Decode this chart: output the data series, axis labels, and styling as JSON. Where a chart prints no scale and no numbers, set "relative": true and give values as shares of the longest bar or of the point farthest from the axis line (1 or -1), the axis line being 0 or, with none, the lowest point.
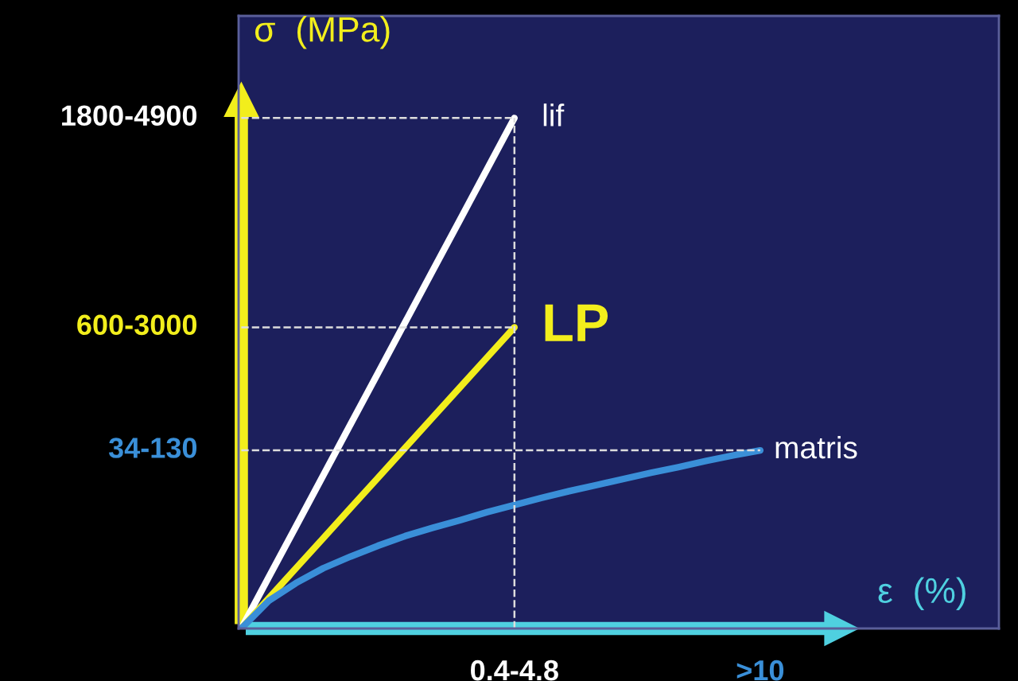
{
  "chart_data": {
    "type": "line",
    "relative": true,
    "ylabel": "σ  (MPa)",
    "xlabel": "ε  (%)",
    "categories": [
      null,
      null,
      null,
      null,
      null,
      null,
      null,
      null,
      null,
      null,
      "0.4-4.8",
      null,
      null,
      null,
      null,
      null,
      null,
      null,
      null,
      ">10"
    ],
    "series": [
      {
        "name": "lif",
        "color": "#ffffff",
        "values": [
          0,
          0.1,
          0.2,
          0.3,
          0.4,
          0.5,
          0.6,
          0.7,
          0.8,
          0.9,
          1,
          null,
          null,
          null,
          null,
          null,
          null,
          null,
          null,
          null
        ]
      },
      {
        "name": "LP",
        "color": "#f2ee1c",
        "values": [
          0,
          0.059,
          0.118,
          0.177,
          0.236,
          0.295,
          0.354,
          0.413,
          0.472,
          0.531,
          0.59,
          null,
          null,
          null,
          null,
          null,
          null,
          null,
          null,
          null
        ]
      },
      {
        "name": "matris",
        "color": "#3a8fd8",
        "values": [
          0,
          0.054,
          0.089,
          0.118,
          0.141,
          0.162,
          0.181,
          0.197,
          0.212,
          0.228,
          0.242,
          0.256,
          0.269,
          0.281,
          0.293,
          0.305,
          0.316,
          0.328,
          0.339,
          0.349
        ]
      }
    ],
    "ref_lines": [
      {
        "axis": "y",
        "value": 1,
        "color": "#dddddd",
        "line_style": "dashed"
      },
      {
        "axis": "y",
        "value": 0.59,
        "color": "#dddddd",
        "line_style": "dashed"
      },
      {
        "axis": "y",
        "value": 0.349,
        "color": "#dddddd",
        "line_style": "dashed"
      },
      {
        "axis": "x",
        "value": "0.4-4.8",
        "color": "#dddddd",
        "line_style": "dashed"
      }
    ],
    "annotations": [
      "1800-4900",
      "600-3000",
      "34-130"
    ],
    "grid": false,
    "legend": false,
    "marker": "none",
    "line_style": "solid"
  }
}
